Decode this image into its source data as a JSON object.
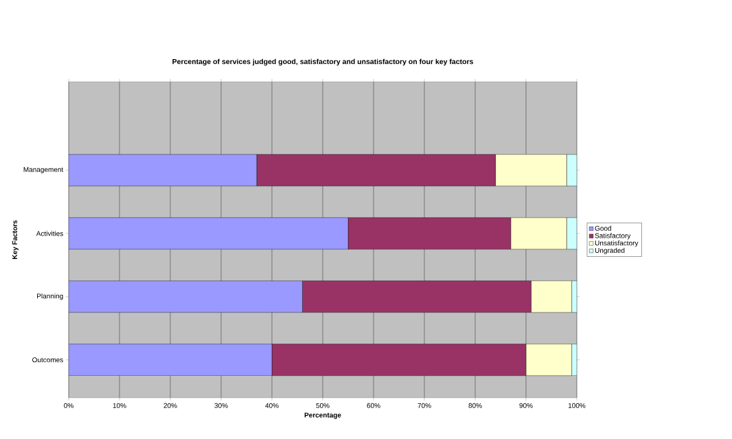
{
  "chart_data": {
    "type": "bar",
    "orientation": "horizontal",
    "stacked": true,
    "title": "Percentage of services judged good, satisfactory and unsatisfactory on four key factors",
    "xlabel": "Percentage",
    "ylabel": "Key Factors",
    "categories": [
      "Management",
      "Activities",
      "Planning",
      "Outcomes"
    ],
    "series": [
      {
        "name": "Good",
        "color": "#9999ff",
        "values": [
          37,
          55,
          46,
          40
        ]
      },
      {
        "name": "Satisfactory",
        "color": "#993366",
        "values": [
          47,
          32,
          45,
          50
        ]
      },
      {
        "name": "Unsatisfactory",
        "color": "#ffffcc",
        "values": [
          14,
          11,
          8,
          9
        ]
      },
      {
        "name": "Ungraded",
        "color": "#ccffff",
        "values": [
          2,
          2,
          1,
          1
        ]
      }
    ],
    "xlim": [
      0,
      100
    ],
    "xticks": [
      {
        "value": 0,
        "label": "0%"
      },
      {
        "value": 10,
        "label": "10%"
      },
      {
        "value": 20,
        "label": "20%"
      },
      {
        "value": 30,
        "label": "30%"
      },
      {
        "value": 40,
        "label": "40%"
      },
      {
        "value": 50,
        "label": "50%"
      },
      {
        "value": 60,
        "label": "60%"
      },
      {
        "value": 70,
        "label": "70%"
      },
      {
        "value": 80,
        "label": "80%"
      },
      {
        "value": 90,
        "label": "90%"
      },
      {
        "value": 100,
        "label": "100%"
      }
    ],
    "grid": "x",
    "legend": "right"
  }
}
